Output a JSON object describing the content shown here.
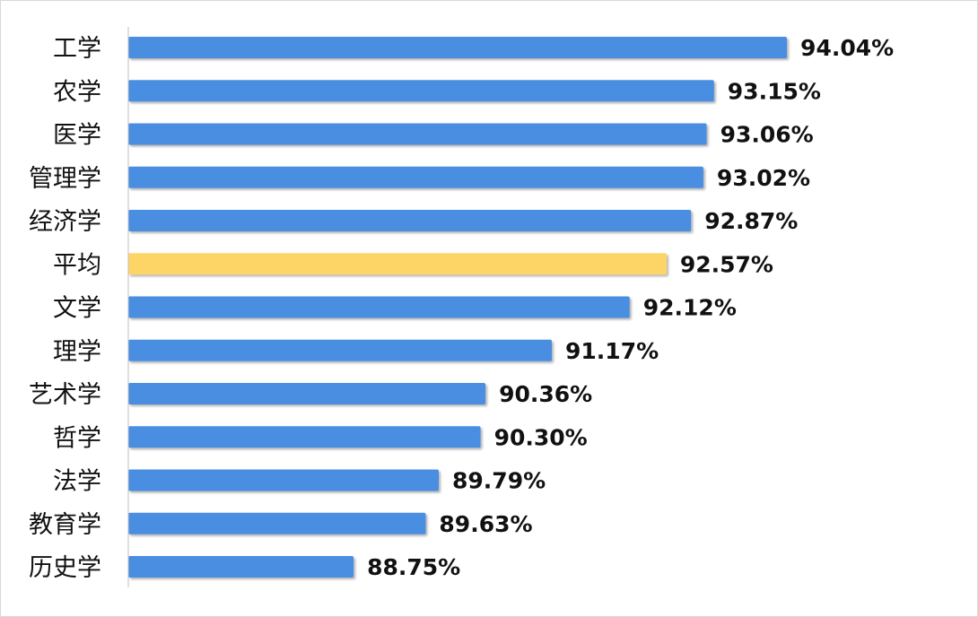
{
  "chart_data": {
    "type": "bar",
    "orientation": "horizontal",
    "categories": [
      "工学",
      "农学",
      "医学",
      "管理学",
      "经济学",
      "平均",
      "文学",
      "理学",
      "艺术学",
      "哲学",
      "法学",
      "教育学",
      "历史学"
    ],
    "values": [
      94.04,
      93.15,
      93.06,
      93.02,
      92.87,
      92.57,
      92.12,
      91.17,
      90.36,
      90.3,
      89.79,
      89.63,
      88.75
    ],
    "data_labels": [
      "94.04%",
      "93.15%",
      "93.06%",
      "93.02%",
      "92.87%",
      "92.57%",
      "92.12%",
      "91.17%",
      "90.36%",
      "90.30%",
      "89.79%",
      "89.63%",
      "88.75%"
    ],
    "highlight_category": "平均",
    "xlim": [
      86,
      96
    ],
    "grid": false,
    "legend": "none",
    "title": "",
    "xlabel": "",
    "ylabel": "",
    "colors": {
      "bar": "#4a8ee0",
      "highlight": "#fdd566",
      "axis": "#bfbfbf"
    }
  }
}
